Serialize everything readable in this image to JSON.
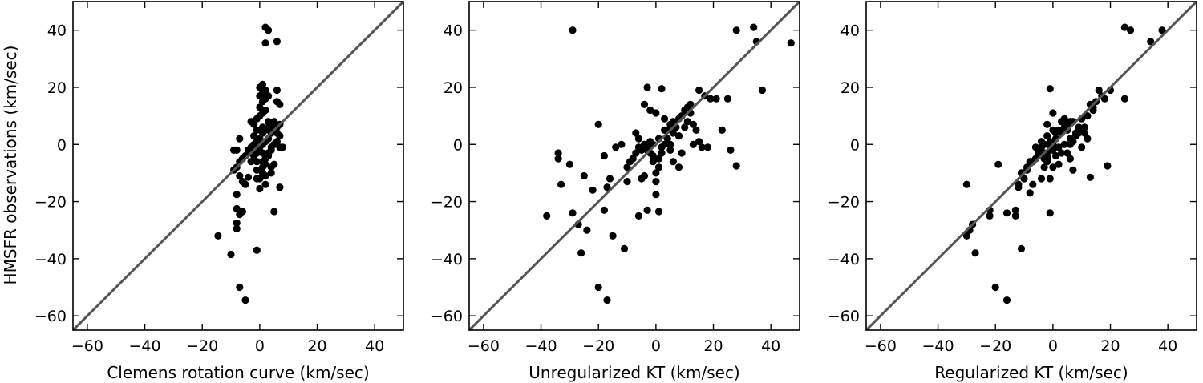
{
  "ylabel": "HMSFR observations (km/sec)",
  "colors": {
    "points": "#000000",
    "identity_line": "#555555",
    "frame": "#000000"
  },
  "chart_data": [
    {
      "type": "scatter",
      "xlabel": "Clemens rotation curve (km/sec)",
      "ylabel": "HMSFR observations (km/sec)",
      "xlim": [
        -65,
        50
      ],
      "ylim": [
        -65,
        50
      ],
      "xticks": [
        -60,
        -40,
        -20,
        0,
        20,
        40
      ],
      "yticks": [
        -60,
        -40,
        -20,
        0,
        20,
        40
      ],
      "reference_line": "y = x",
      "grid": false,
      "points": [
        [
          -14.5,
          -32
        ],
        [
          -10,
          -38.5
        ],
        [
          -8,
          -29.5
        ],
        [
          -8,
          -27.5
        ],
        [
          -7,
          -24.5
        ],
        [
          -6,
          -23.5
        ],
        [
          -8,
          -22.5
        ],
        [
          -7,
          -50
        ],
        [
          -5,
          -54.5
        ],
        [
          -1,
          -37
        ],
        [
          -8,
          -17.5
        ],
        [
          -7,
          -11
        ],
        [
          -6,
          -13
        ],
        [
          -5,
          -14
        ],
        [
          -4,
          -11.5
        ],
        [
          -9,
          -9
        ],
        [
          -8,
          -8
        ],
        [
          -7,
          -6
        ],
        [
          -6,
          -5
        ],
        [
          -9,
          -2
        ],
        [
          -8,
          -2
        ],
        [
          -7,
          2
        ],
        [
          -5,
          -4
        ],
        [
          -4,
          -2
        ],
        [
          -3,
          -1
        ],
        [
          -3,
          -3
        ],
        [
          -2,
          0
        ],
        [
          -2,
          -2
        ],
        [
          -1,
          -3
        ],
        [
          -1,
          -6
        ],
        [
          -1,
          -9
        ],
        [
          -1,
          -12
        ],
        [
          0,
          -12
        ],
        [
          0,
          -15.5
        ],
        [
          1,
          -10
        ],
        [
          1,
          -8
        ],
        [
          1,
          -6
        ],
        [
          1,
          -3
        ],
        [
          2,
          -5
        ],
        [
          2,
          -7
        ],
        [
          2,
          -11
        ],
        [
          2,
          -14
        ],
        [
          4,
          -8
        ],
        [
          4,
          -10
        ],
        [
          5,
          -7
        ],
        [
          5,
          -23.5
        ],
        [
          7,
          -15
        ],
        [
          3,
          -3
        ],
        [
          4,
          -1
        ],
        [
          5,
          0
        ],
        [
          6,
          1
        ],
        [
          7,
          -1
        ],
        [
          8,
          -1
        ],
        [
          7,
          3
        ],
        [
          6,
          4
        ],
        [
          5,
          5
        ],
        [
          4,
          4
        ],
        [
          3,
          2
        ],
        [
          2,
          1
        ],
        [
          1,
          0
        ],
        [
          0,
          -1
        ],
        [
          -1,
          1
        ],
        [
          0,
          2
        ],
        [
          1,
          4
        ],
        [
          2,
          5
        ],
        [
          3,
          6
        ],
        [
          4,
          7
        ],
        [
          5,
          8
        ],
        [
          6,
          6
        ],
        [
          7,
          7
        ],
        [
          -3,
          8
        ],
        [
          -1,
          9
        ],
        [
          0,
          10
        ],
        [
          1,
          11
        ],
        [
          2,
          12
        ],
        [
          0,
          13
        ],
        [
          1,
          15
        ],
        [
          2,
          16
        ],
        [
          0,
          17
        ],
        [
          1,
          18
        ],
        [
          2,
          19
        ],
        [
          3,
          17
        ],
        [
          0,
          20
        ],
        [
          1,
          21
        ],
        [
          6,
          19
        ],
        [
          6,
          15
        ],
        [
          7,
          14
        ],
        [
          3,
          8
        ],
        [
          -2,
          7
        ],
        [
          -1,
          5
        ],
        [
          1,
          6
        ],
        [
          2,
          41
        ],
        [
          3,
          40
        ],
        [
          6,
          36
        ],
        [
          2,
          35.5
        ],
        [
          -2,
          3
        ],
        [
          -3,
          -6
        ],
        [
          3,
          -4
        ],
        [
          4,
          -2
        ],
        [
          -2,
          -4
        ]
      ]
    },
    {
      "type": "scatter",
      "xlabel": "Unregularized KT (km/sec)",
      "ylabel": "",
      "xlim": [
        -65,
        50
      ],
      "ylim": [
        -65,
        50
      ],
      "xticks": [
        -60,
        -40,
        -20,
        0,
        20,
        40
      ],
      "yticks": [
        -60,
        -40,
        -20,
        0,
        20,
        40
      ],
      "reference_line": "y = x",
      "grid": false,
      "points": [
        [
          -29,
          40
        ],
        [
          -38,
          -25
        ],
        [
          -34,
          -3
        ],
        [
          -34,
          -5
        ],
        [
          -33,
          -14
        ],
        [
          -30,
          -7
        ],
        [
          -29,
          -24
        ],
        [
          -27,
          -28
        ],
        [
          -26,
          -38
        ],
        [
          -24,
          -30
        ],
        [
          -25,
          -11
        ],
        [
          -22,
          -16
        ],
        [
          -20,
          -50
        ],
        [
          -18,
          -23
        ],
        [
          -17,
          -54.5
        ],
        [
          -17,
          -15
        ],
        [
          -16,
          -12
        ],
        [
          -15,
          -32
        ],
        [
          -20,
          7
        ],
        [
          -18,
          -4
        ],
        [
          -14,
          -1
        ],
        [
          -12,
          0
        ],
        [
          -11,
          -36.5
        ],
        [
          -10,
          -13
        ],
        [
          -10,
          -8
        ],
        [
          -9,
          -6
        ],
        [
          -8,
          -5
        ],
        [
          -7,
          -3
        ],
        [
          -7,
          4
        ],
        [
          -6,
          2
        ],
        [
          -6,
          -1
        ],
        [
          -5,
          -2
        ],
        [
          -5,
          -12
        ],
        [
          -4,
          -11
        ],
        [
          -4,
          0
        ],
        [
          -3,
          -2
        ],
        [
          -3,
          -1
        ],
        [
          -2,
          1
        ],
        [
          -2,
          -3
        ],
        [
          -1,
          -4
        ],
        [
          -1,
          -6
        ],
        [
          -6,
          -25
        ],
        [
          -3,
          -23
        ],
        [
          0,
          -17.5
        ],
        [
          0,
          -13
        ],
        [
          1,
          -23.5
        ],
        [
          0,
          -10
        ],
        [
          1,
          -8
        ],
        [
          1,
          -5
        ],
        [
          2,
          -3
        ],
        [
          2,
          -1
        ],
        [
          3,
          0
        ],
        [
          4,
          2
        ],
        [
          4,
          5
        ],
        [
          5,
          7
        ],
        [
          6,
          8
        ],
        [
          7,
          6
        ],
        [
          8,
          9
        ],
        [
          9,
          10
        ],
        [
          10,
          12
        ],
        [
          11,
          13
        ],
        [
          12,
          11
        ],
        [
          13,
          7
        ],
        [
          14,
          5
        ],
        [
          15,
          1
        ],
        [
          16,
          -1
        ],
        [
          18,
          -1
        ],
        [
          19,
          16
        ],
        [
          21,
          16
        ],
        [
          23,
          5
        ],
        [
          25,
          16
        ],
        [
          26,
          -2
        ],
        [
          28,
          -7.5
        ],
        [
          28,
          40
        ],
        [
          34,
          41
        ],
        [
          35,
          36
        ],
        [
          37,
          19
        ],
        [
          47,
          35.5
        ],
        [
          -3,
          20
        ],
        [
          -2,
          12
        ],
        [
          0,
          11
        ],
        [
          2,
          19.5
        ],
        [
          3,
          5
        ],
        [
          5,
          0
        ],
        [
          6,
          -6
        ],
        [
          8,
          -8
        ],
        [
          9,
          -3
        ],
        [
          10,
          6
        ],
        [
          12,
          14
        ],
        [
          15,
          19
        ],
        [
          17,
          17
        ],
        [
          -4,
          14
        ],
        [
          3,
          9
        ],
        [
          6,
          4
        ],
        [
          8,
          3
        ],
        [
          11,
          8
        ],
        [
          13,
          0
        ],
        [
          5,
          -2
        ],
        [
          -1,
          0
        ],
        [
          1,
          2
        ]
      ]
    },
    {
      "type": "scatter",
      "xlabel": "Regularized KT (km/sec)",
      "ylabel": "",
      "xlim": [
        -65,
        50
      ],
      "ylim": [
        -65,
        50
      ],
      "xticks": [
        -60,
        -40,
        -20,
        0,
        20,
        40
      ],
      "yticks": [
        -60,
        -40,
        -20,
        0,
        20,
        40
      ],
      "reference_line": "y = x",
      "grid": false,
      "points": [
        [
          -30,
          -32
        ],
        [
          -30,
          -14
        ],
        [
          -29,
          -30
        ],
        [
          -28,
          -28
        ],
        [
          -27,
          -38
        ],
        [
          -22,
          -25
        ],
        [
          -22,
          -23
        ],
        [
          -20,
          -50
        ],
        [
          -16,
          -54.5
        ],
        [
          -11,
          -36.5
        ],
        [
          -19,
          -7
        ],
        [
          -16,
          -24
        ],
        [
          -13,
          -23
        ],
        [
          -13,
          -25
        ],
        [
          -12,
          -15
        ],
        [
          -11,
          -10
        ],
        [
          -10,
          -12
        ],
        [
          -9,
          -8
        ],
        [
          -8,
          -17
        ],
        [
          -7,
          -14
        ],
        [
          -7,
          -6
        ],
        [
          -6,
          -5
        ],
        [
          -5,
          -4
        ],
        [
          -5,
          -2
        ],
        [
          -4,
          -1
        ],
        [
          -3,
          0
        ],
        [
          -3,
          -3
        ],
        [
          -2,
          -4
        ],
        [
          -2,
          -6
        ],
        [
          -1,
          -2
        ],
        [
          -1,
          1
        ],
        [
          0,
          0
        ],
        [
          0,
          -2
        ],
        [
          1,
          2
        ],
        [
          1,
          4
        ],
        [
          2,
          5
        ],
        [
          3,
          4
        ],
        [
          4,
          6
        ],
        [
          5,
          7
        ],
        [
          5,
          5
        ],
        [
          6,
          8
        ],
        [
          7,
          8
        ],
        [
          8,
          3
        ],
        [
          9,
          4
        ],
        [
          10,
          5
        ],
        [
          11,
          6
        ],
        [
          12,
          10
        ],
        [
          13,
          14
        ],
        [
          14,
          12
        ],
        [
          15,
          15
        ],
        [
          16,
          19
        ],
        [
          17,
          17
        ],
        [
          18,
          16
        ],
        [
          20,
          19
        ],
        [
          19,
          -7.5
        ],
        [
          13,
          -11.5
        ],
        [
          10,
          -1
        ],
        [
          7,
          -9
        ],
        [
          6,
          -5
        ],
        [
          5,
          -3
        ],
        [
          3,
          -3
        ],
        [
          2,
          -1
        ],
        [
          0,
          -8
        ],
        [
          -1,
          -12
        ],
        [
          -2,
          -5
        ],
        [
          -3,
          -8
        ],
        [
          -4,
          -12
        ],
        [
          -5,
          -3
        ],
        [
          -6,
          -1
        ],
        [
          -8,
          -6
        ],
        [
          -1,
          -24
        ],
        [
          -1,
          19.5
        ],
        [
          -2,
          7
        ],
        [
          0,
          11
        ],
        [
          3,
          8
        ],
        [
          4,
          9
        ],
        [
          6,
          2
        ],
        [
          7,
          1
        ],
        [
          8,
          4
        ],
        [
          9,
          6
        ],
        [
          11,
          4
        ],
        [
          12,
          2
        ],
        [
          25,
          41
        ],
        [
          27,
          40
        ],
        [
          34,
          36
        ],
        [
          38,
          40
        ],
        [
          25,
          16
        ],
        [
          -4,
          1
        ],
        [
          -2,
          3
        ],
        [
          1,
          -4
        ],
        [
          2,
          -7
        ],
        [
          4,
          0
        ],
        [
          6,
          0
        ],
        [
          -3,
          -5
        ],
        [
          -9,
          -9
        ],
        [
          -12,
          -14
        ],
        [
          14,
          13
        ],
        [
          10,
          9
        ],
        [
          0,
          5
        ],
        [
          -1,
          -1
        ]
      ]
    }
  ]
}
